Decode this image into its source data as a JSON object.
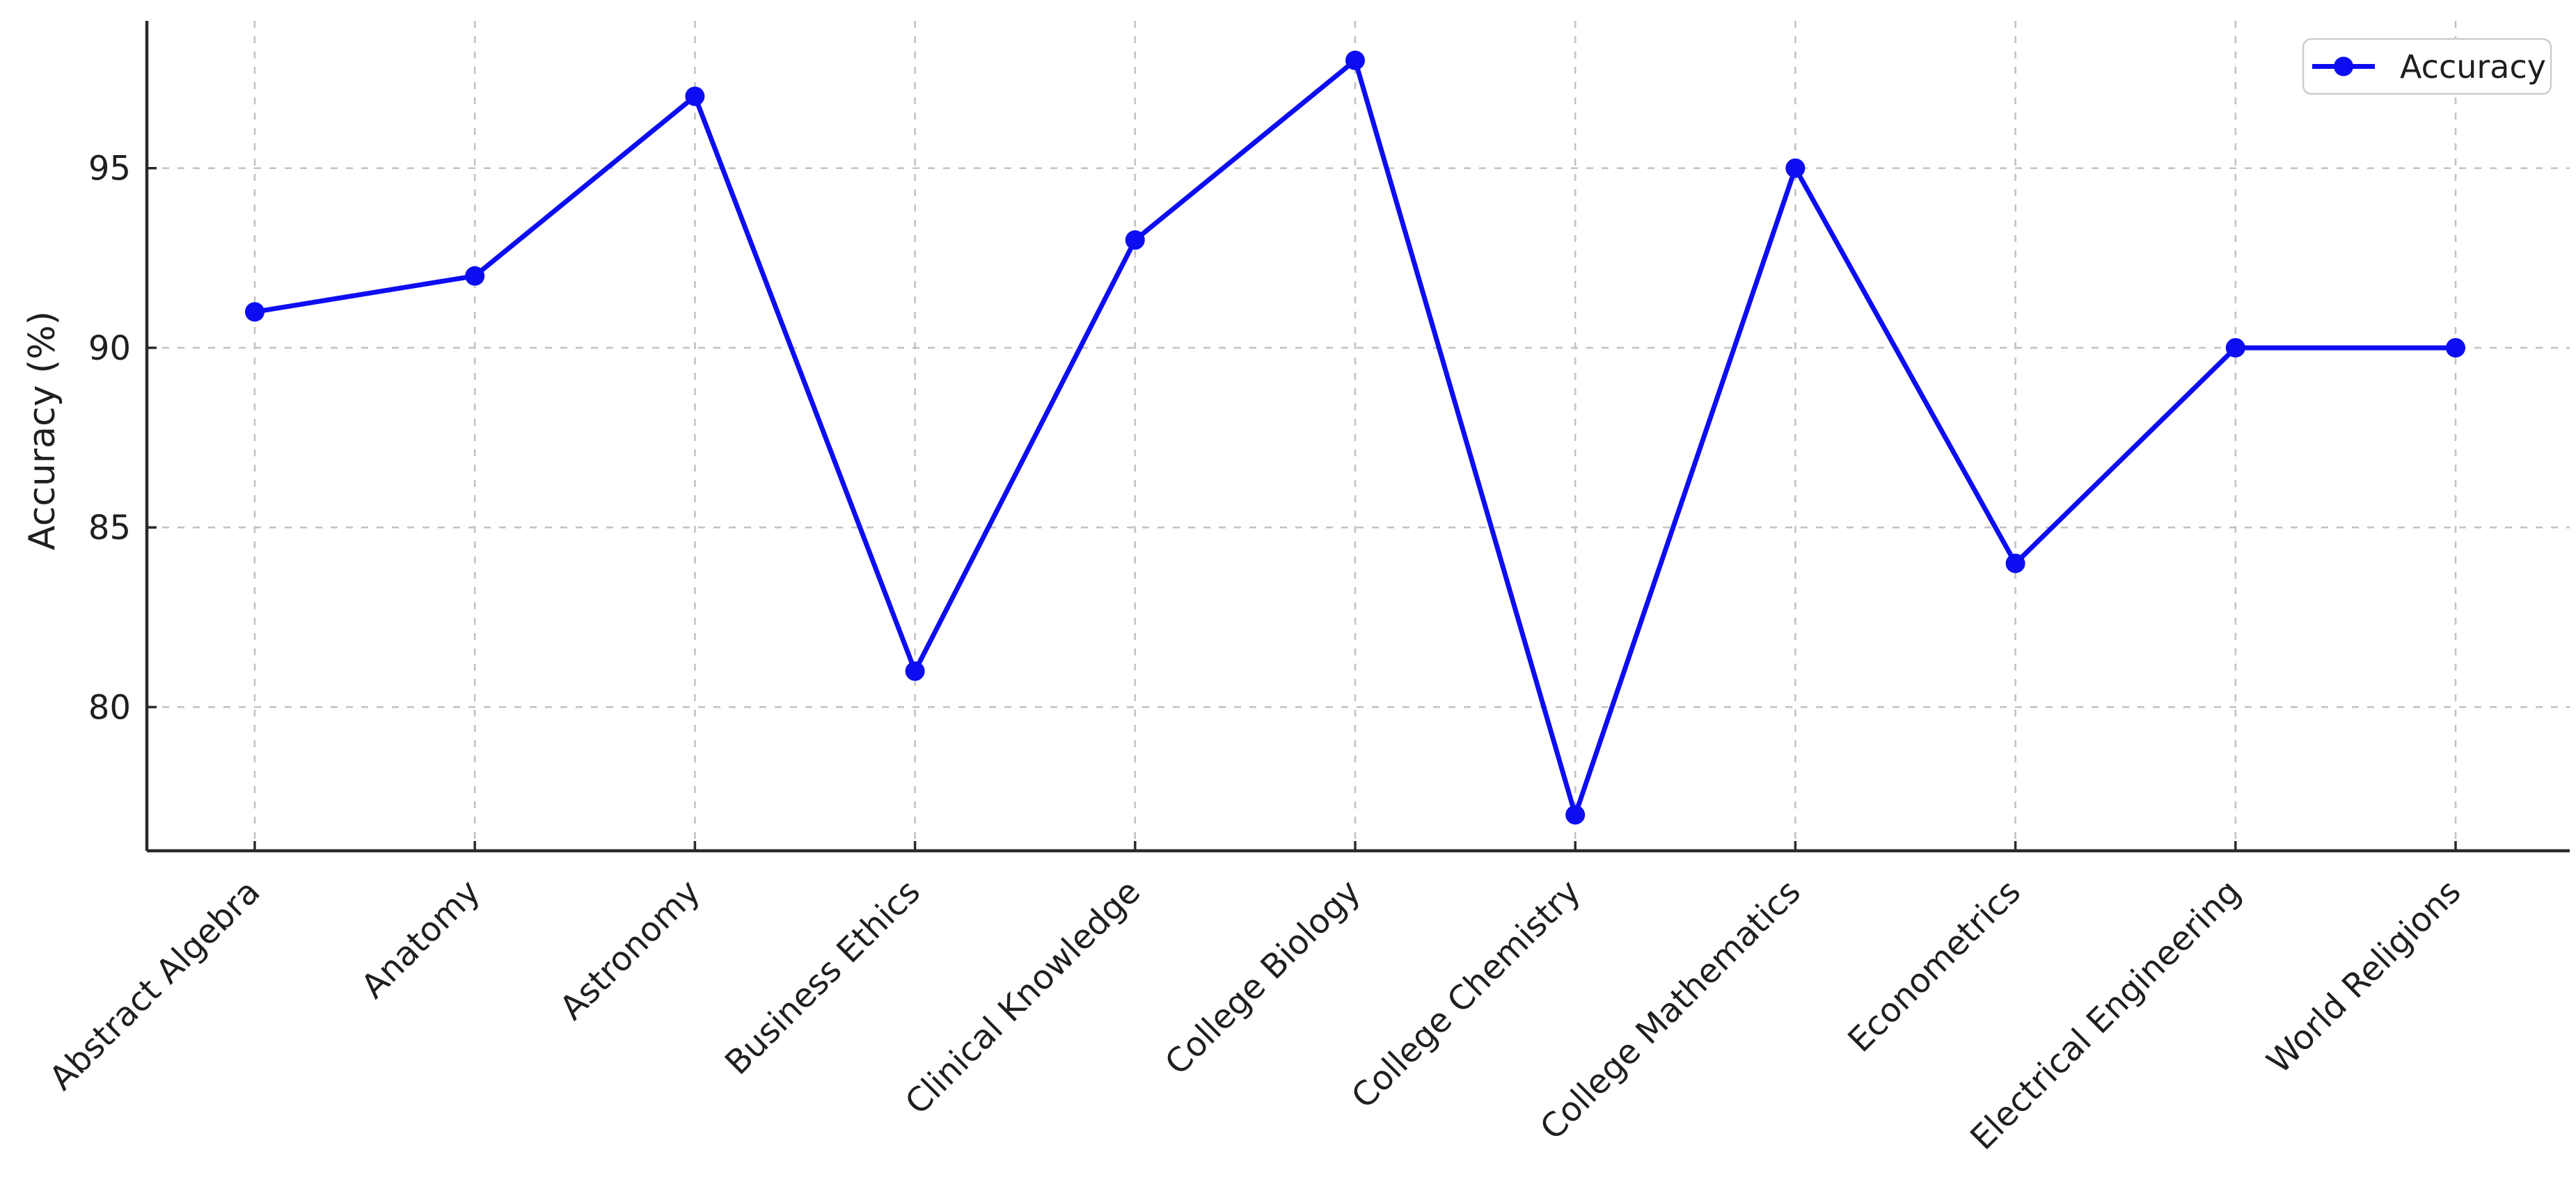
{
  "chart_data": {
    "type": "line",
    "title": "",
    "xlabel": "",
    "ylabel": "Accuracy (%)",
    "categories": [
      "Abstract Algebra",
      "Anatomy",
      "Astronomy",
      "Business Ethics",
      "Clinical Knowledge",
      "College Biology",
      "College Chemistry",
      "College Mathematics",
      "Econometrics",
      "Electrical Engineering",
      "World Religions"
    ],
    "series": [
      {
        "name": "Accuracy",
        "values": [
          91,
          92,
          97,
          81,
          93,
          98,
          77,
          95,
          84,
          90,
          90
        ]
      }
    ],
    "yticks": [
      80,
      85,
      90,
      95
    ],
    "ylim": [
      76.0,
      99.1
    ],
    "grid": true,
    "grid_style": "dashed",
    "legend_position": "upper right",
    "marker": "o",
    "x_tick_label_rotation": -45
  },
  "colors": {
    "line": "#0d0df2",
    "marker": "#0d0df2",
    "grid": "#c3c3c3",
    "spine": "#2a2a2a",
    "tick": "#2a2a2a",
    "text": "#1f1f1f",
    "legend_border": "#cccccc",
    "legend_background": "#ffffff",
    "background": "#ffffff"
  }
}
